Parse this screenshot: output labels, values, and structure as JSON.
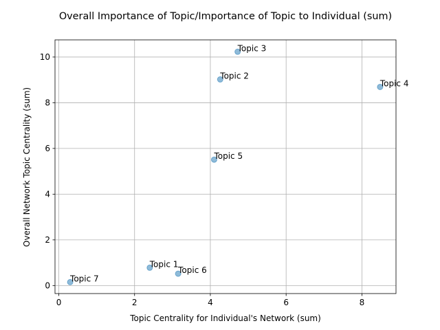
{
  "chart_data": {
    "type": "scatter",
    "title": "Overall Importance of Topic/Importance of Topic to Individual (sum)",
    "xlabel": "Topic Centrality for Individual's Network (sum)",
    "ylabel": "Overall Network Topic Centrality (sum)",
    "xlim": [
      -0.1,
      8.9
    ],
    "ylim": [
      -0.35,
      10.75
    ],
    "xticks": [
      0,
      2,
      4,
      6,
      8
    ],
    "yticks": [
      0,
      2,
      4,
      6,
      8,
      10
    ],
    "grid": true,
    "marker_color": "#1f77b4",
    "points": [
      {
        "label": "Topic 1",
        "x": 2.4,
        "y": 0.78
      },
      {
        "label": "Topic 2",
        "x": 4.26,
        "y": 9.02
      },
      {
        "label": "Topic 3",
        "x": 4.72,
        "y": 10.23
      },
      {
        "label": "Topic 4",
        "x": 8.48,
        "y": 8.69
      },
      {
        "label": "Topic 5",
        "x": 4.1,
        "y": 5.51
      },
      {
        "label": "Topic 6",
        "x": 3.15,
        "y": 0.52
      },
      {
        "label": "Topic 7",
        "x": 0.3,
        "y": 0.15
      }
    ]
  }
}
